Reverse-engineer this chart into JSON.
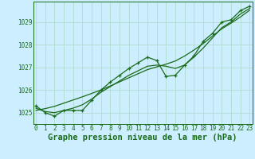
{
  "title": "Graphe pression niveau de la mer (hPa)",
  "background_color": "#cceeff",
  "grid_color": "#b0ddd0",
  "line_color": "#1a6b1a",
  "x_values": [
    0,
    1,
    2,
    3,
    4,
    5,
    6,
    7,
    8,
    9,
    10,
    11,
    12,
    13,
    14,
    15,
    16,
    17,
    18,
    19,
    20,
    21,
    22,
    23
  ],
  "y_main": [
    1025.3,
    1025.0,
    1024.85,
    1025.1,
    1025.1,
    1025.1,
    1025.55,
    1026.0,
    1026.35,
    1026.65,
    1026.95,
    1027.2,
    1027.45,
    1027.3,
    1026.6,
    1026.65,
    1027.1,
    1027.5,
    1028.15,
    1028.5,
    1029.0,
    1029.1,
    1029.5,
    1029.7
  ],
  "y_smooth": [
    1025.2,
    1025.05,
    1025.0,
    1025.1,
    1025.2,
    1025.35,
    1025.6,
    1025.9,
    1026.15,
    1026.4,
    1026.65,
    1026.85,
    1027.05,
    1027.1,
    1027.05,
    1026.95,
    1027.1,
    1027.45,
    1027.85,
    1028.3,
    1028.75,
    1029.0,
    1029.35,
    1029.6
  ],
  "y_trend": [
    1025.1,
    1025.18,
    1025.28,
    1025.42,
    1025.56,
    1025.7,
    1025.85,
    1026.0,
    1026.18,
    1026.36,
    1026.54,
    1026.72,
    1026.9,
    1027.02,
    1027.14,
    1027.28,
    1027.5,
    1027.76,
    1028.05,
    1028.38,
    1028.7,
    1028.95,
    1029.22,
    1029.52
  ],
  "ylim": [
    1024.5,
    1029.9
  ],
  "yticks": [
    1025,
    1026,
    1027,
    1028,
    1029
  ],
  "xticks": [
    0,
    1,
    2,
    3,
    4,
    5,
    6,
    7,
    8,
    9,
    10,
    11,
    12,
    13,
    14,
    15,
    16,
    17,
    18,
    19,
    20,
    21,
    22,
    23
  ],
  "title_fontsize": 7.5,
  "tick_fontsize": 5.5,
  "line_width": 0.9,
  "marker_size": 3.5
}
